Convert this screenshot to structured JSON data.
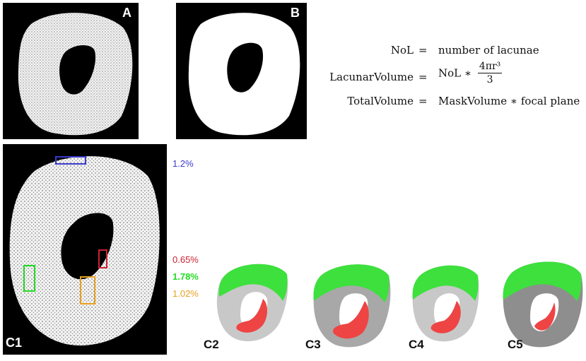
{
  "panels": {
    "a": {
      "label": "A"
    },
    "b": {
      "label": "B"
    },
    "c1": {
      "label": "C1"
    },
    "c2": {
      "label": "C2"
    },
    "c3": {
      "label": "C3"
    },
    "c4": {
      "label": "C4"
    },
    "c5": {
      "label": "C5"
    }
  },
  "equations": [
    {
      "lhs": "NoL",
      "op": "=",
      "rhs": "number of lacunae"
    },
    {
      "lhs": "LacunarVolume",
      "op": "=",
      "rhs_prefix": "NoL ∗",
      "numerator": "4πr³",
      "denominator": "3"
    },
    {
      "lhs": "TotalVolume",
      "op": "=",
      "rhs": "MaskVolume ∗ focal plane"
    }
  ],
  "percentages": [
    {
      "value": "1.2%",
      "color": "#3a3acc"
    },
    {
      "value": "0.65%",
      "color": "#cc2233"
    },
    {
      "value": "1.78%",
      "color": "#22dd22"
    },
    {
      "value": "1.02%",
      "color": "#e8a020"
    }
  ],
  "colors": {
    "blue_roi": "#3a3acc",
    "red_roi": "#cc2233",
    "green_roi": "#22dd22",
    "orange_roi": "#e8a020",
    "overlay_green": "#3de03d",
    "overlay_red": "#ee4444"
  }
}
